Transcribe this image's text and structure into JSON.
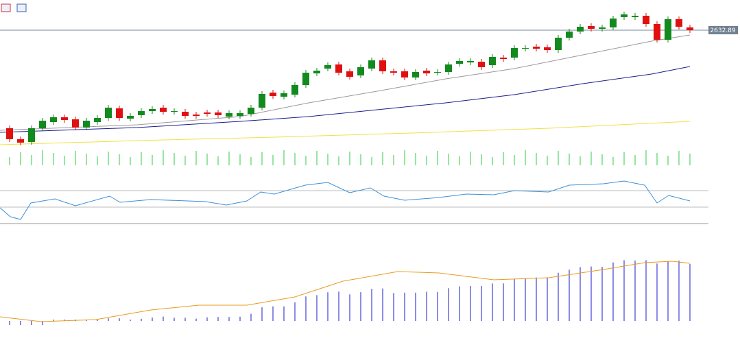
{
  "price_label": "2632.89"
}
